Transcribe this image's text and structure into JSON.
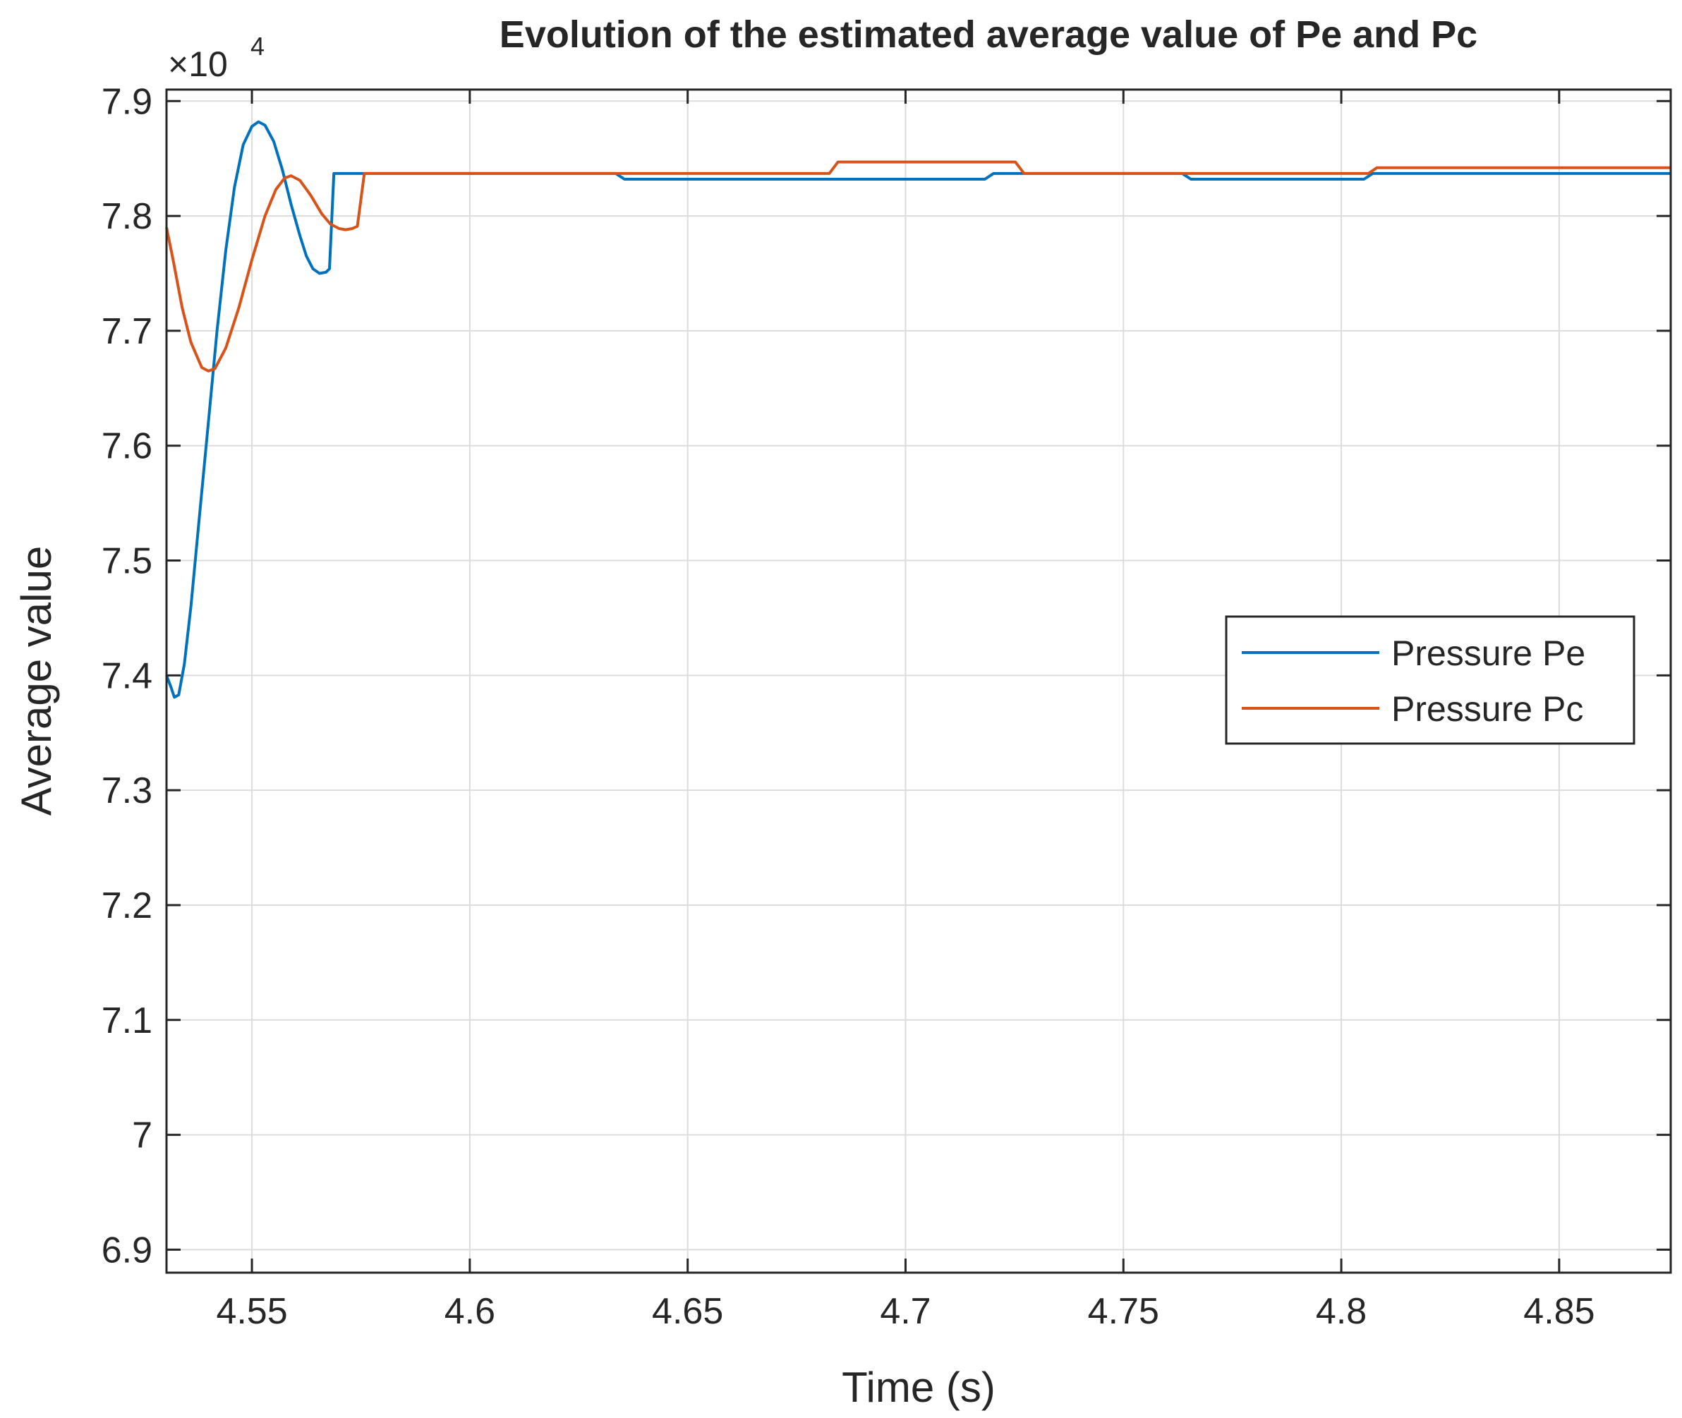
{
  "chart_data": {
    "type": "line",
    "title": "Evolution of the estimated average value of Pe and Pc",
    "xlabel": "Time (s)",
    "ylabel": "Average value",
    "y_exponent_base": "×10",
    "y_exponent_power": "4",
    "xlim": [
      4.5304,
      4.8756
    ],
    "ylim": [
      6.88,
      7.91
    ],
    "grid": true,
    "legend_position": "right",
    "x_ticks": [
      {
        "value": 4.55,
        "label": "4.55"
      },
      {
        "value": 4.6,
        "label": "4.6"
      },
      {
        "value": 4.65,
        "label": "4.65"
      },
      {
        "value": 4.7,
        "label": "4.7"
      },
      {
        "value": 4.75,
        "label": "4.75"
      },
      {
        "value": 4.8,
        "label": "4.8"
      },
      {
        "value": 4.85,
        "label": "4.85"
      }
    ],
    "y_ticks": [
      {
        "value": 6.9,
        "label": "6.9"
      },
      {
        "value": 7.0,
        "label": "7"
      },
      {
        "value": 7.1,
        "label": "7.1"
      },
      {
        "value": 7.2,
        "label": "7.2"
      },
      {
        "value": 7.3,
        "label": "7.3"
      },
      {
        "value": 7.4,
        "label": "7.4"
      },
      {
        "value": 7.5,
        "label": "7.5"
      },
      {
        "value": 7.6,
        "label": "7.6"
      },
      {
        "value": 7.7,
        "label": "7.7"
      },
      {
        "value": 7.8,
        "label": "7.8"
      },
      {
        "value": 7.9,
        "label": "7.9"
      }
    ],
    "series": [
      {
        "name": "Pressure Pe",
        "color": "#0072BD",
        "points": [
          [
            4.5304,
            7.4
          ],
          [
            4.5314,
            7.39
          ],
          [
            4.5322,
            7.381
          ],
          [
            4.5332,
            7.383
          ],
          [
            4.5345,
            7.41
          ],
          [
            4.536,
            7.46
          ],
          [
            4.538,
            7.54
          ],
          [
            4.54,
            7.62
          ],
          [
            4.542,
            7.7
          ],
          [
            4.544,
            7.77
          ],
          [
            4.546,
            7.825
          ],
          [
            4.548,
            7.862
          ],
          [
            4.55,
            7.878
          ],
          [
            4.5515,
            7.882
          ],
          [
            4.553,
            7.879
          ],
          [
            4.555,
            7.865
          ],
          [
            4.557,
            7.84
          ],
          [
            4.559,
            7.81
          ],
          [
            4.561,
            7.783
          ],
          [
            4.5625,
            7.765
          ],
          [
            4.564,
            7.754
          ],
          [
            4.5655,
            7.75
          ],
          [
            4.567,
            7.751
          ],
          [
            4.5678,
            7.754
          ],
          [
            4.5688,
            7.837
          ],
          [
            4.6335,
            7.837
          ],
          [
            4.6355,
            7.832
          ],
          [
            4.7182,
            7.832
          ],
          [
            4.7202,
            7.837
          ],
          [
            4.7635,
            7.837
          ],
          [
            4.7655,
            7.832
          ],
          [
            4.8052,
            7.832
          ],
          [
            4.8072,
            7.837
          ],
          [
            4.8756,
            7.837
          ]
        ]
      },
      {
        "name": "Pressure Pc",
        "color": "#D95319",
        "points": [
          [
            4.5304,
            7.79
          ],
          [
            4.532,
            7.76
          ],
          [
            4.534,
            7.72
          ],
          [
            4.536,
            7.69
          ],
          [
            4.5385,
            7.668
          ],
          [
            4.54,
            7.665
          ],
          [
            4.5415,
            7.667
          ],
          [
            4.544,
            7.685
          ],
          [
            4.547,
            7.72
          ],
          [
            4.55,
            7.762
          ],
          [
            4.553,
            7.8
          ],
          [
            4.5555,
            7.823
          ],
          [
            4.5575,
            7.833
          ],
          [
            4.559,
            7.835
          ],
          [
            4.561,
            7.831
          ],
          [
            4.5635,
            7.818
          ],
          [
            4.566,
            7.802
          ],
          [
            4.568,
            7.793
          ],
          [
            4.57,
            7.789
          ],
          [
            4.5715,
            7.788
          ],
          [
            4.573,
            7.789
          ],
          [
            4.5742,
            7.791
          ],
          [
            4.5758,
            7.837
          ],
          [
            4.6825,
            7.837
          ],
          [
            4.6845,
            7.847
          ],
          [
            4.7252,
            7.847
          ],
          [
            4.7272,
            7.837
          ],
          [
            4.8062,
            7.837
          ],
          [
            4.8082,
            7.842
          ],
          [
            4.8756,
            7.842
          ]
        ]
      }
    ]
  }
}
